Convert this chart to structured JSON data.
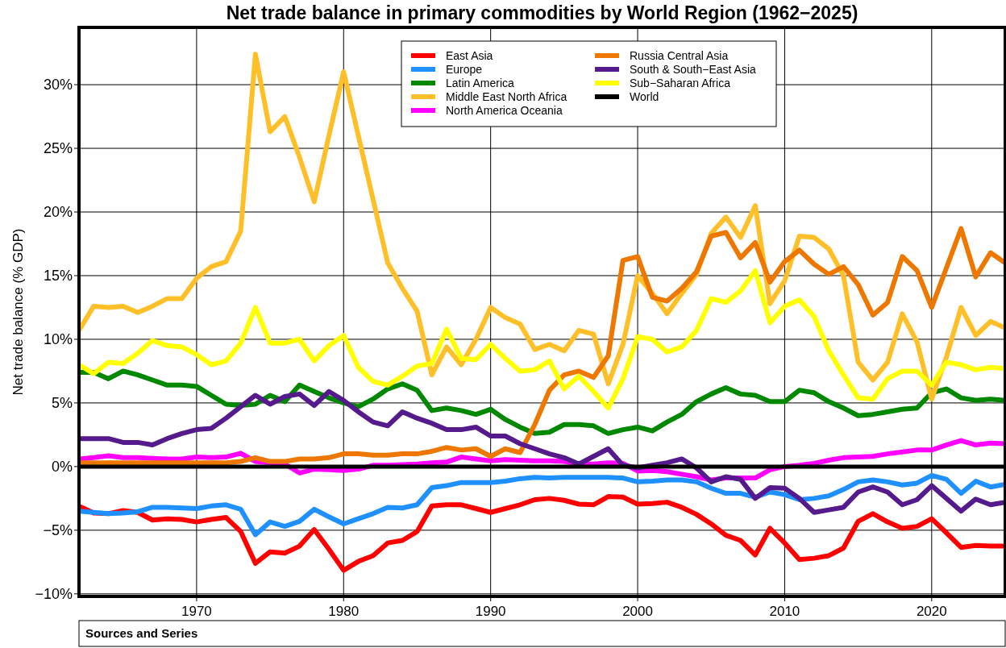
{
  "chart_data": {
    "type": "line",
    "title": "Net trade balance in primary commodities by World Region (1962−2025)",
    "ylabel": "Net trade balance (% GDP)",
    "x": [
      1962,
      1963,
      1964,
      1965,
      1966,
      1967,
      1968,
      1969,
      1970,
      1971,
      1972,
      1973,
      1974,
      1975,
      1976,
      1977,
      1978,
      1979,
      1980,
      1981,
      1982,
      1983,
      1984,
      1985,
      1986,
      1987,
      1988,
      1989,
      1990,
      1991,
      1992,
      1993,
      1994,
      1995,
      1996,
      1997,
      1998,
      1999,
      2000,
      2001,
      2002,
      2003,
      2004,
      2005,
      2006,
      2007,
      2008,
      2009,
      2010,
      2011,
      2012,
      2013,
      2014,
      2015,
      2016,
      2017,
      2018,
      2019,
      2020,
      2021,
      2022,
      2023,
      2024,
      2025
    ],
    "xlim": [
      1962,
      2025
    ],
    "xticks": [
      1970,
      1980,
      1990,
      2000,
      2010,
      2020
    ],
    "ylim": [
      -10.2,
      34.5
    ],
    "yticks": [
      {
        "value": -10,
        "label": "−10%"
      },
      {
        "value": -5,
        "label": "−5%"
      },
      {
        "value": 0,
        "label": "0%"
      },
      {
        "value": 5,
        "label": "5%"
      },
      {
        "value": 10,
        "label": "10%"
      },
      {
        "value": 15,
        "label": "15%"
      },
      {
        "value": 20,
        "label": "20%"
      },
      {
        "value": 25,
        "label": "25%"
      },
      {
        "value": 30,
        "label": "30%"
      }
    ],
    "grid": true,
    "legend": "top",
    "marker": "none",
    "line_style": "solid",
    "annotations": [
      "Sources and Series"
    ],
    "series": [
      {
        "name": "East Asia",
        "color": "#ff0000",
        "values": [
          -3.1,
          -3.65,
          -3.7,
          -3.45,
          -3.6,
          -4.2,
          -4.1,
          -4.15,
          -4.35,
          -4.15,
          -4.0,
          -5.1,
          -7.6,
          -6.7,
          -6.8,
          -6.25,
          -4.95,
          -6.5,
          -8.15,
          -7.45,
          -7.0,
          -6.0,
          -5.8,
          -5.1,
          -3.1,
          -3.0,
          -3.0,
          -3.3,
          -3.6,
          -3.3,
          -3.0,
          -2.6,
          -2.5,
          -2.65,
          -2.95,
          -3.0,
          -2.35,
          -2.4,
          -2.95,
          -2.9,
          -2.8,
          -3.2,
          -3.75,
          -4.5,
          -5.4,
          -5.8,
          -6.95,
          -4.85,
          -6.0,
          -7.3,
          -7.2,
          -7.0,
          -6.4,
          -4.3,
          -3.7,
          -4.35,
          -4.85,
          -4.7,
          -4.1,
          -5.2,
          -6.35,
          -6.2,
          -6.25,
          -6.25
        ]
      },
      {
        "name": "Europe",
        "color": "#1e90ff",
        "values": [
          -3.5,
          -3.6,
          -3.7,
          -3.65,
          -3.55,
          -3.2,
          -3.2,
          -3.25,
          -3.3,
          -3.1,
          -3.0,
          -3.35,
          -5.35,
          -4.35,
          -4.7,
          -4.3,
          -3.35,
          -3.95,
          -4.5,
          -4.1,
          -3.7,
          -3.2,
          -3.25,
          -3.0,
          -1.65,
          -1.5,
          -1.25,
          -1.25,
          -1.25,
          -1.15,
          -0.95,
          -0.85,
          -0.9,
          -0.85,
          -0.85,
          -0.85,
          -0.85,
          -0.9,
          -1.2,
          -1.15,
          -1.05,
          -1.05,
          -1.2,
          -1.7,
          -2.1,
          -2.1,
          -2.4,
          -2.0,
          -2.2,
          -2.6,
          -2.5,
          -2.3,
          -1.8,
          -1.2,
          -1.05,
          -1.2,
          -1.45,
          -1.3,
          -0.7,
          -1.0,
          -2.1,
          -1.15,
          -1.6,
          -1.4
        ]
      },
      {
        "name": "Latin America",
        "color": "#008800",
        "values": [
          7.4,
          7.4,
          6.9,
          7.5,
          7.2,
          6.8,
          6.4,
          6.4,
          6.3,
          5.6,
          4.9,
          4.8,
          4.9,
          5.6,
          5.1,
          6.4,
          5.9,
          5.4,
          5.0,
          4.7,
          5.3,
          6.1,
          6.5,
          6.0,
          4.4,
          4.6,
          4.4,
          4.1,
          4.5,
          3.7,
          3.1,
          2.6,
          2.7,
          3.3,
          3.3,
          3.2,
          2.6,
          2.9,
          3.1,
          2.8,
          3.5,
          4.1,
          5.1,
          5.7,
          6.2,
          5.7,
          5.6,
          5.1,
          5.1,
          6.0,
          5.8,
          5.1,
          4.6,
          4.0,
          4.1,
          4.3,
          4.5,
          4.6,
          5.8,
          6.1,
          5.4,
          5.2,
          5.3,
          5.2
        ]
      },
      {
        "name": "Middle East North Africa",
        "color": "#ffbf29",
        "values": [
          10.7,
          12.6,
          12.5,
          12.6,
          12.1,
          12.6,
          13.2,
          13.2,
          14.8,
          15.7,
          16.1,
          18.5,
          32.4,
          26.3,
          27.5,
          24.3,
          20.8,
          26.0,
          31.0,
          26.0,
          21.0,
          16.0,
          14.0,
          12.2,
          7.2,
          9.4,
          8.0,
          10.0,
          12.5,
          11.7,
          11.2,
          9.2,
          9.6,
          9.1,
          10.7,
          10.4,
          6.5,
          9.6,
          15.0,
          13.6,
          12.0,
          13.6,
          15.1,
          18.3,
          19.6,
          18.0,
          20.5,
          12.8,
          14.6,
          18.1,
          18.0,
          17.1,
          15.0,
          8.2,
          6.8,
          8.2,
          12.0,
          9.8,
          5.3,
          8.6,
          12.5,
          10.3,
          11.4,
          10.9
        ]
      },
      {
        "name": "North America Oceania",
        "color": "#ff00ff",
        "values": [
          0.6,
          0.7,
          0.85,
          0.7,
          0.7,
          0.65,
          0.6,
          0.6,
          0.75,
          0.7,
          0.75,
          1.05,
          0.4,
          0.3,
          0.2,
          -0.5,
          -0.2,
          -0.25,
          -0.3,
          -0.2,
          0.1,
          0.1,
          0.15,
          0.2,
          0.3,
          0.35,
          0.75,
          0.6,
          0.45,
          0.55,
          0.5,
          0.45,
          0.45,
          0.4,
          0.2,
          0.2,
          0.3,
          0.25,
          -0.35,
          -0.3,
          -0.4,
          -0.6,
          -0.8,
          -1.05,
          -0.9,
          -0.9,
          -0.9,
          -0.25,
          0.0,
          0.1,
          0.25,
          0.5,
          0.7,
          0.75,
          0.8,
          1.0,
          1.15,
          1.3,
          1.3,
          1.7,
          2.05,
          1.7,
          1.85,
          1.8
        ]
      },
      {
        "name": "Russia Central Asia",
        "color": "#ee7700",
        "values": [
          0.3,
          0.3,
          0.3,
          0.3,
          0.3,
          0.3,
          0.3,
          0.3,
          0.3,
          0.3,
          0.3,
          0.4,
          0.7,
          0.4,
          0.4,
          0.6,
          0.6,
          0.7,
          1.0,
          1.0,
          0.9,
          0.9,
          1.0,
          1.0,
          1.2,
          1.5,
          1.3,
          1.4,
          0.8,
          1.4,
          1.1,
          3.3,
          6.0,
          7.2,
          7.5,
          7.0,
          8.7,
          16.2,
          16.5,
          13.3,
          13.0,
          14.0,
          15.3,
          18.1,
          18.4,
          16.4,
          17.6,
          14.5,
          16.1,
          17.0,
          15.9,
          15.1,
          15.7,
          14.3,
          11.9,
          12.9,
          16.5,
          15.4,
          12.5,
          15.6,
          18.7,
          14.9,
          16.8,
          16.0
        ]
      },
      {
        "name": "South & South−East Asia",
        "color": "#551a8b",
        "values": [
          2.2,
          2.2,
          2.2,
          1.9,
          1.9,
          1.7,
          2.2,
          2.6,
          2.9,
          3.0,
          3.8,
          4.7,
          5.6,
          4.9,
          5.5,
          5.7,
          4.8,
          5.9,
          5.2,
          4.3,
          3.5,
          3.2,
          4.3,
          3.8,
          3.4,
          2.9,
          2.9,
          3.1,
          2.4,
          2.4,
          1.8,
          1.4,
          1.0,
          0.7,
          0.2,
          0.8,
          1.4,
          0.1,
          -0.1,
          0.1,
          0.3,
          0.6,
          -0.1,
          -1.2,
          -0.8,
          -1.0,
          -2.5,
          -1.65,
          -1.7,
          -2.5,
          -3.6,
          -3.4,
          -3.2,
          -2.0,
          -1.6,
          -2.0,
          -3.0,
          -2.6,
          -1.5,
          -2.5,
          -3.5,
          -2.55,
          -3.0,
          -2.8
        ]
      },
      {
        "name": "Sub−Saharan Africa",
        "color": "#ffff00",
        "values": [
          8.0,
          7.3,
          8.2,
          8.1,
          8.9,
          9.9,
          9.5,
          9.4,
          8.8,
          8.0,
          8.3,
          9.7,
          12.5,
          9.7,
          9.7,
          10.0,
          8.3,
          9.5,
          10.3,
          7.8,
          6.7,
          6.4,
          7.1,
          7.9,
          8.1,
          10.8,
          8.5,
          8.4,
          9.6,
          8.5,
          7.5,
          7.6,
          8.3,
          6.1,
          7.1,
          5.9,
          4.6,
          6.9,
          10.2,
          10.0,
          9.0,
          9.4,
          10.7,
          13.2,
          12.9,
          13.8,
          15.4,
          11.3,
          12.6,
          13.1,
          11.8,
          9.1,
          7.2,
          5.4,
          5.3,
          6.9,
          7.5,
          7.5,
          6.4,
          8.2,
          8.0,
          7.6,
          7.8,
          7.7
        ]
      },
      {
        "name": "World",
        "color": "#000000",
        "values": [
          0,
          0,
          0,
          0,
          0,
          0,
          0,
          0,
          0,
          0,
          0,
          0,
          0,
          0,
          0,
          0,
          0,
          0,
          0,
          0,
          0,
          0,
          0,
          0,
          0,
          0,
          0,
          0,
          0,
          0,
          0,
          0,
          0,
          0,
          0,
          0,
          0,
          0,
          0,
          0,
          0,
          0,
          0,
          0,
          0,
          0,
          0,
          0,
          0,
          0,
          0,
          0,
          0,
          0,
          0,
          0,
          0,
          0,
          0,
          0,
          0,
          0,
          0,
          0
        ]
      }
    ]
  }
}
